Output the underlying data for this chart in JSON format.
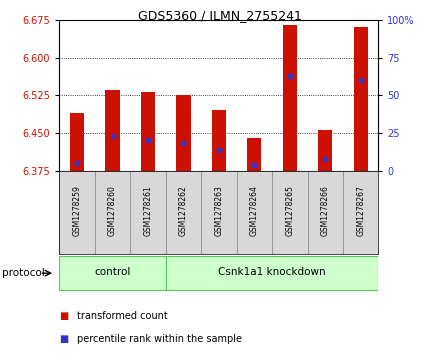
{
  "title": "GDS5360 / ILMN_2755241",
  "samples": [
    "GSM1278259",
    "GSM1278260",
    "GSM1278261",
    "GSM1278262",
    "GSM1278263",
    "GSM1278264",
    "GSM1278265",
    "GSM1278266",
    "GSM1278267"
  ],
  "transformed_counts": [
    6.49,
    6.535,
    6.532,
    6.525,
    6.495,
    6.44,
    6.665,
    6.455,
    6.66
  ],
  "percentile_ranks": [
    5,
    23,
    20,
    18,
    14,
    4,
    63,
    8,
    60
  ],
  "y_min": 6.375,
  "y_max": 6.675,
  "y_ticks": [
    6.375,
    6.45,
    6.525,
    6.6,
    6.675
  ],
  "y_right_ticks": [
    0,
    25,
    50,
    75,
    100
  ],
  "bar_color": "#cc1100",
  "percentile_color": "#3333cc",
  "protocol_groups": [
    {
      "label": "control",
      "start": 0,
      "end": 2
    },
    {
      "label": "Csnk1a1 knockdown",
      "start": 3,
      "end": 8
    }
  ],
  "protocol_group_color_light": "#ccffcc",
  "protocol_group_color_dark": "#55cc55",
  "xlabel_color": "#cc1100",
  "ylabel_right_color": "#3333cc",
  "legend_square_red": "#cc1100",
  "legend_square_blue": "#3333cc"
}
